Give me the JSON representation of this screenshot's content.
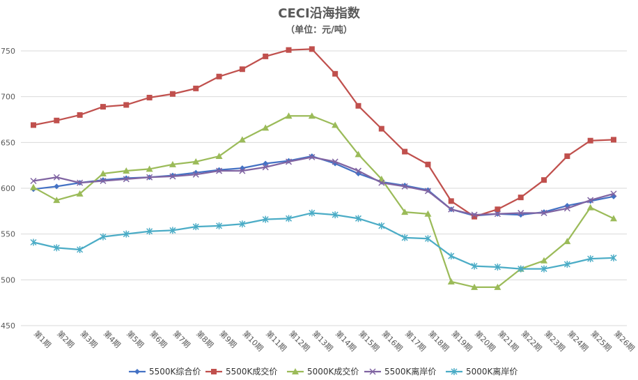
{
  "chart_data": {
    "type": "line",
    "title": "CECI沿海指数",
    "subtitle": "（单位：元/吨）",
    "xlabel": "",
    "ylabel": "",
    "ylim": [
      450,
      750
    ],
    "y_ticks": [
      "450",
      "500",
      "550",
      "600",
      "650",
      "700",
      "750"
    ],
    "grid": true,
    "legend_position": "bottom",
    "categories": [
      "第1期",
      "第2期",
      "第3期",
      "第4期",
      "第5期",
      "第6期",
      "第7期",
      "第8期",
      "第9期",
      "第10期",
      "第11期",
      "第12期",
      "第13期",
      "第14期",
      "第15期",
      "第16期",
      "第17期",
      "第18期",
      "第19期",
      "第20期",
      "第21期",
      "第22期",
      "第23期",
      "第24期",
      "第25期",
      "第26期"
    ],
    "series": [
      {
        "name": "5500K综合价",
        "color": "#4472C4",
        "marker": "diamond",
        "values": [
          599,
          602,
          606,
          609,
          611,
          612,
          614,
          617,
          620,
          622,
          627,
          630,
          635,
          627,
          616,
          607,
          603,
          598,
          577,
          570,
          572,
          571,
          574,
          581,
          586,
          591
        ]
      },
      {
        "name": "5500K成交价",
        "color": "#C0504D",
        "marker": "square",
        "values": [
          669,
          674,
          680,
          689,
          691,
          699,
          703,
          709,
          722,
          730,
          744,
          751,
          752,
          725,
          690,
          665,
          640,
          626,
          586,
          569,
          577,
          590,
          609,
          635,
          652,
          653
        ]
      },
      {
        "name": "5000K成交价",
        "color": "#9BBB59",
        "marker": "triangle",
        "values": [
          601,
          587,
          594,
          616,
          619,
          621,
          626,
          629,
          635,
          653,
          666,
          679,
          679,
          669,
          637,
          610,
          574,
          572,
          498,
          492,
          492,
          512,
          521,
          542,
          579,
          567
        ]
      },
      {
        "name": "5500K离岸价",
        "color": "#8064A2",
        "marker": "x",
        "values": [
          608,
          612,
          606,
          608,
          610,
          612,
          613,
          615,
          619,
          619,
          623,
          629,
          634,
          629,
          619,
          606,
          602,
          597,
          577,
          571,
          572,
          573,
          573,
          578,
          587,
          594
        ]
      },
      {
        "name": "5000K离岸价",
        "color": "#4BACC6",
        "marker": "star",
        "values": [
          541,
          535,
          533,
          547,
          550,
          553,
          554,
          558,
          559,
          561,
          566,
          567,
          573,
          571,
          567,
          559,
          546,
          545,
          526,
          515,
          514,
          512,
          512,
          517,
          523,
          524
        ]
      }
    ]
  }
}
